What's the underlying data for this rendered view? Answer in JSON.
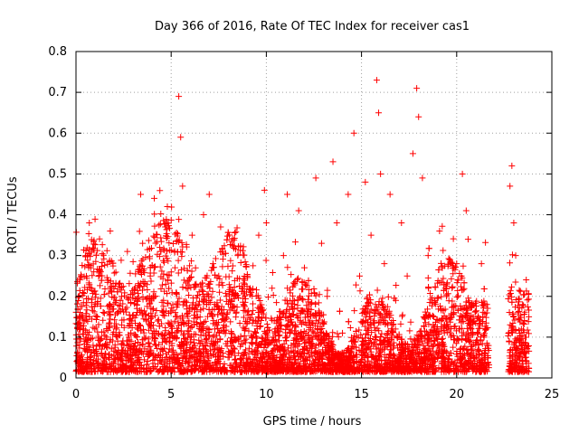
{
  "chart_data": {
    "type": "scatter",
    "title": "Day 366 of 2016, Rate Of TEC Index for receiver cas1",
    "xlabel": "GPS time / hours",
    "ylabel": "ROTI / TECUs",
    "xlim": [
      0,
      25
    ],
    "ylim": [
      0,
      0.8
    ],
    "xticks": [
      "0",
      "5",
      "10",
      "15",
      "20",
      "25"
    ],
    "yticks": [
      "0",
      "0.1",
      "0.2",
      "0.3",
      "0.4",
      "0.5",
      "0.6",
      "0.7",
      "0.8"
    ],
    "grid": true,
    "marker": "+",
    "color": "#ff0000",
    "series": [
      {
        "x": [
          0.2,
          0.4,
          0.6,
          0.7,
          0.8,
          0.9,
          1.1,
          1.3,
          1.6,
          1.8,
          2.1,
          2.4,
          2.7,
          2.9,
          3.2,
          3.4,
          3.5,
          3.7,
          3.9,
          4.2,
          4.4,
          4.6,
          4.8,
          5.0,
          5.2,
          5.4,
          5.5,
          5.6,
          5.8,
          6.1,
          6.4,
          6.7,
          7.0,
          7.2,
          7.4,
          7.6,
          7.9,
          8.2,
          8.5,
          8.8,
          9.0,
          9.3,
          9.6,
          9.9,
          10.0,
          10.3,
          10.6,
          10.9,
          11.1,
          11.4,
          11.7,
          12.0,
          12.3,
          12.6,
          12.9,
          13.2,
          13.5,
          13.7,
          14.0,
          14.3,
          14.6,
          14.9,
          15.2,
          15.5,
          15.8,
          15.9,
          16.0,
          16.2,
          16.5,
          16.8,
          17.1,
          17.4,
          17.7,
          17.9,
          18.0,
          18.2,
          18.5,
          18.8,
          19.1,
          19.4,
          19.7,
          20.0,
          20.3,
          20.5,
          20.6,
          20.8,
          21.0,
          21.3,
          21.5,
          22.8,
          22.9,
          23.0,
          23.1,
          23.2,
          23.4,
          23.6,
          2.0,
          6.0,
          9.5,
          12.5,
          15.0,
          19.0
        ],
        "y": [
          0.05,
          0.12,
          0.3,
          0.38,
          0.22,
          0.08,
          0.15,
          0.26,
          0.1,
          0.36,
          0.12,
          0.2,
          0.31,
          0.09,
          0.17,
          0.45,
          0.33,
          0.14,
          0.25,
          0.08,
          0.32,
          0.19,
          0.42,
          0.11,
          0.27,
          0.69,
          0.59,
          0.47,
          0.22,
          0.35,
          0.15,
          0.4,
          0.45,
          0.28,
          0.13,
          0.37,
          0.2,
          0.09,
          0.3,
          0.18,
          0.25,
          0.1,
          0.35,
          0.46,
          0.38,
          0.22,
          0.12,
          0.3,
          0.45,
          0.19,
          0.41,
          0.27,
          0.14,
          0.49,
          0.33,
          0.2,
          0.53,
          0.38,
          0.11,
          0.45,
          0.6,
          0.25,
          0.48,
          0.35,
          0.73,
          0.65,
          0.5,
          0.28,
          0.45,
          0.19,
          0.38,
          0.25,
          0.55,
          0.71,
          0.64,
          0.49,
          0.3,
          0.15,
          0.36,
          0.22,
          0.1,
          0.28,
          0.5,
          0.41,
          0.34,
          0.18,
          0.08,
          0.28,
          0.05,
          0.47,
          0.52,
          0.38,
          0.3,
          0.16,
          0.12,
          0.06,
          0.04,
          0.07,
          0.05,
          0.06,
          0.08,
          0.05
        ]
      }
    ]
  }
}
